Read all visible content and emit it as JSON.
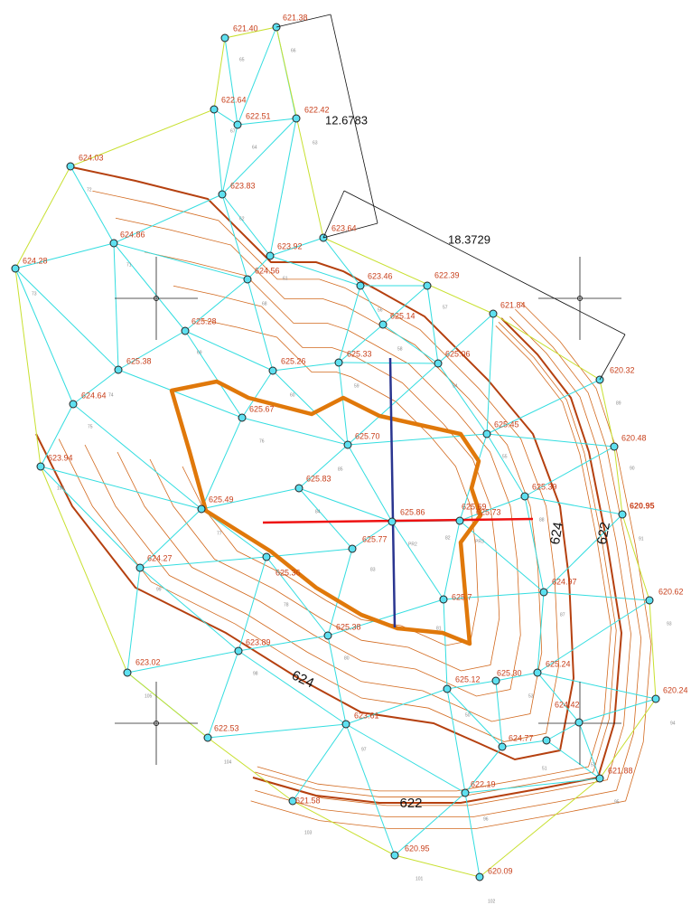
{
  "dimensions": [
    "12.6783",
    "18.3729"
  ],
  "contour_labels": [
    "624",
    "622",
    "624",
    "622"
  ],
  "elevations": [
    "621.40",
    "621.38",
    "622.64",
    "622.42",
    "622.51",
    "624.03",
    "623.83",
    "623.64",
    "624.86",
    "623.92",
    "624.28",
    "624.56",
    "623.46",
    "622.39",
    "621.84",
    "625.14",
    "625.28",
    "625.33",
    "625.06",
    "625.38",
    "625.26",
    "620.32",
    "624.64",
    "625.67",
    "625.45",
    "625.70",
    "620.48",
    "623.94",
    "625.83",
    "625.39",
    "625.49",
    "620.95",
    "625.86",
    "625.69",
    "625.73",
    "625.77",
    "624.27",
    "625.36",
    "624.97",
    "625.7",
    "620.62",
    "625.38",
    "623.89",
    "623.02",
    "625.24",
    "625.30",
    "625.12",
    "620.24",
    "623.61",
    "624.42",
    "622.53",
    "624.77",
    "621.88",
    "622.19",
    "621.58",
    "620.95",
    "620.09"
  ],
  "triangle_ids": [
    "65",
    "66",
    "67",
    "64",
    "63",
    "72",
    "73",
    "71",
    "62",
    "61",
    "69",
    "68",
    "60",
    "59",
    "58",
    "57",
    "56",
    "55",
    "54",
    "74",
    "75",
    "106",
    "76",
    "85",
    "84",
    "77",
    "82",
    "83",
    "78",
    "99",
    "81",
    "80",
    "93",
    "90",
    "89",
    "91",
    "PR2",
    "PR3",
    "88",
    "87",
    "53",
    "52",
    "51",
    "50",
    "98",
    "97",
    "96",
    "95",
    "94",
    "105",
    "104",
    "103",
    "101",
    "102"
  ]
}
